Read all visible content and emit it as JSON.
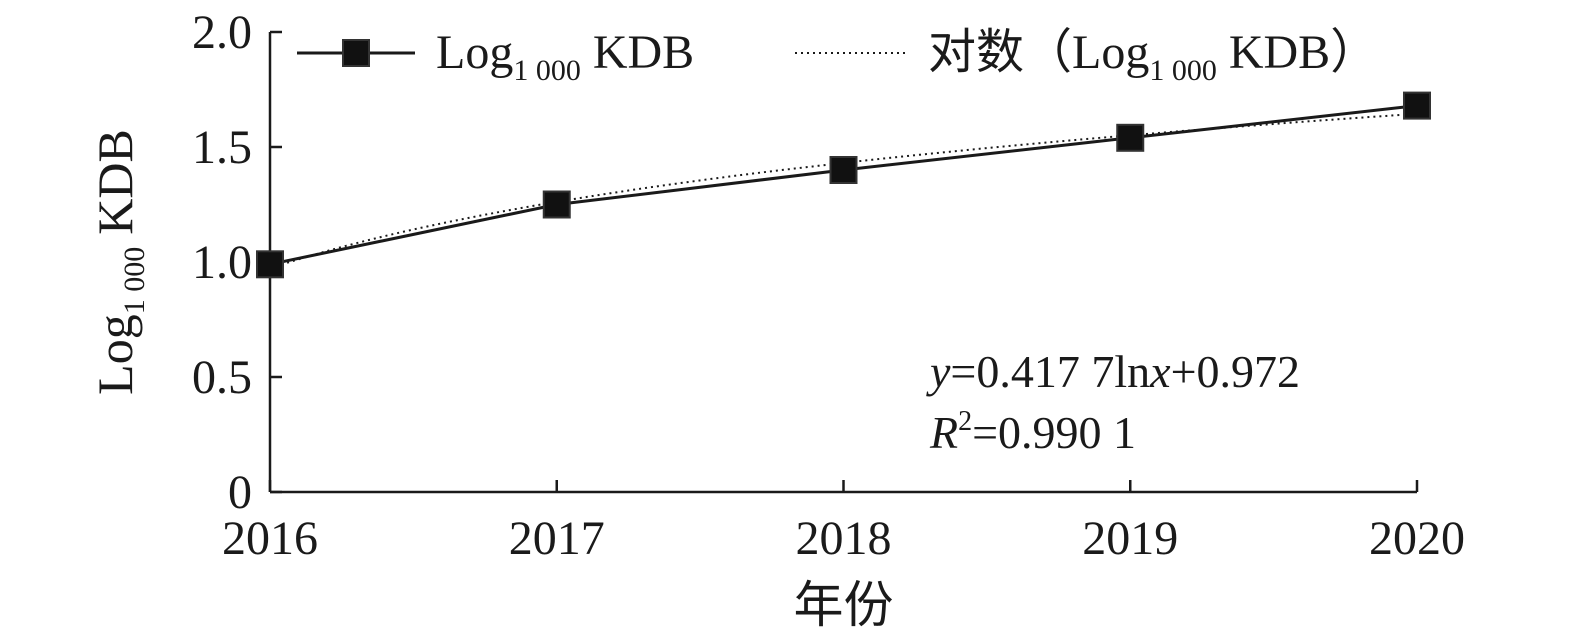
{
  "chart_data": {
    "type": "line",
    "x": [
      2016,
      2017,
      2018,
      2019,
      2020
    ],
    "series": [
      {
        "name": "Log 1 000 KDB",
        "name_parts": {
          "base": "Log",
          "sub": "1 000",
          "rest": "KDB"
        },
        "values": [
          0.99,
          1.25,
          1.4,
          1.54,
          1.68
        ],
        "marker": "square",
        "line": "solid"
      }
    ],
    "trendline": {
      "name": "对数（Log 1 000 KDB）",
      "name_parts": {
        "prefix": "对数（",
        "base": "Log",
        "sub": "1 000",
        "rest": "KDB",
        "suffix": "）"
      },
      "type": "logarithmic",
      "a": 0.4177,
      "b": 0.972,
      "line": "dotted"
    },
    "equation": {
      "line1": {
        "y": "y",
        "mid": "=0.417 7ln",
        "x": "x",
        "end": "+0.972"
      },
      "line2": {
        "r": "R",
        "sup": "2",
        "end": "=0.990 1"
      }
    },
    "xlabel": "年份",
    "ylabel": {
      "base": "Log",
      "sub": "1 000",
      "rest": "KDB"
    },
    "xlim": [
      2016,
      2020
    ],
    "ylim": [
      0,
      2.0
    ],
    "x_ticks": [
      "2016",
      "2017",
      "2018",
      "2019",
      "2020"
    ],
    "y_ticks": [
      "0",
      "0.5",
      "1.0",
      "1.5",
      "2.0"
    ],
    "y_tick_values": [
      0,
      0.5,
      1.0,
      1.5,
      2.0
    ],
    "grid": false,
    "legend_position": "top",
    "colors": {
      "line": "#1a1a1a",
      "marker": "#111111"
    }
  }
}
